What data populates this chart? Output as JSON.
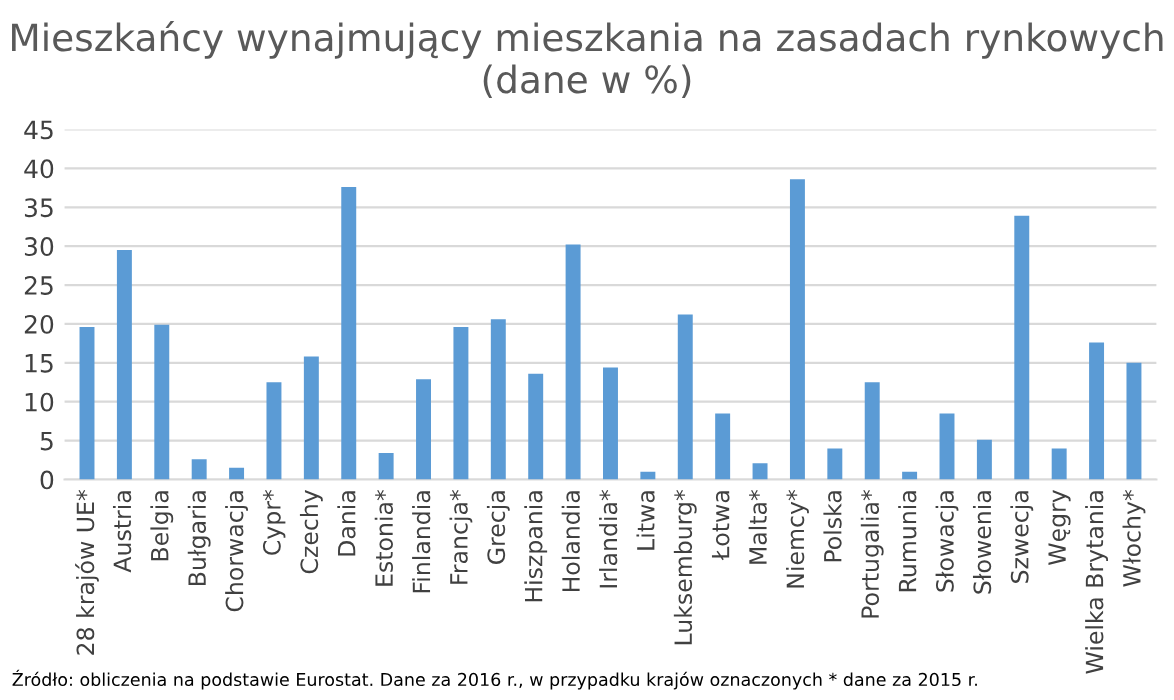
{
  "chart_data": {
    "type": "bar",
    "title": "Mieszkańcy wynajmujący mieszkania na zasadach rynkowych (dane w %)",
    "categories": [
      "28 krajów UE*",
      "Austria",
      "Belgia",
      "Bułgaria",
      "Chorwacja",
      "Cypr*",
      "Czechy",
      "Dania",
      "Estonia*",
      "Finlandia",
      "Francja*",
      "Grecja",
      "Hiszpania",
      "Holandia",
      "Irlandia*",
      "Litwa",
      "Luksemburg*",
      "Łotwa",
      "Malta*",
      "Niemcy*",
      "Polska",
      "Portugalia*",
      "Rumunia",
      "Słowacja",
      "Słowenia",
      "Szwecja",
      "Węgry",
      "Wielka Brytania",
      "Włochy*"
    ],
    "values": [
      19.6,
      29.5,
      19.9,
      2.6,
      1.5,
      12.5,
      15.8,
      37.6,
      3.4,
      12.9,
      19.6,
      20.6,
      13.6,
      30.2,
      14.4,
      1.0,
      21.2,
      8.5,
      2.1,
      38.6,
      4.0,
      12.5,
      1.0,
      8.5,
      5.1,
      33.9,
      4.0,
      17.6,
      15.0
    ],
    "color": "#5b9bd5",
    "ylim": [
      0,
      45
    ],
    "yticks": [
      0,
      5,
      10,
      15,
      20,
      25,
      30,
      35,
      40,
      45
    ],
    "grid": "y",
    "annotations": [
      "Źródło: obliczenia na podstawie Eurostat. Dane za 2016 r., w przypadku krajów oznaczonych * dane za 2015 r."
    ]
  }
}
